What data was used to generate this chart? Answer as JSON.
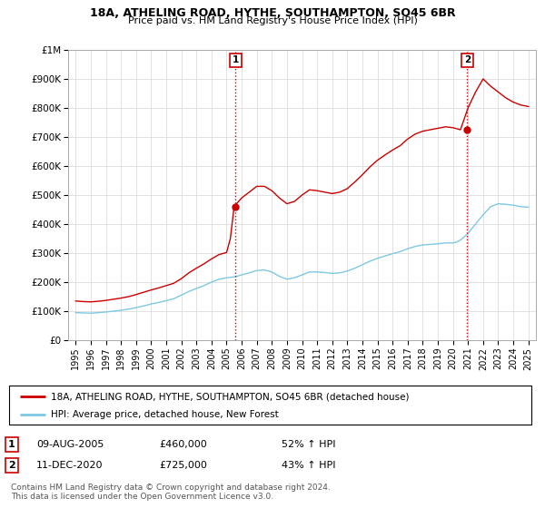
{
  "title": "18A, ATHELING ROAD, HYTHE, SOUTHAMPTON, SO45 6BR",
  "subtitle": "Price paid vs. HM Land Registry's House Price Index (HPI)",
  "property_label": "18A, ATHELING ROAD, HYTHE, SOUTHAMPTON, SO45 6BR (detached house)",
  "hpi_label": "HPI: Average price, detached house, New Forest",
  "property_color": "#cc0000",
  "hpi_color": "#7ec8e3",
  "transaction1_date": "09-AUG-2005",
  "transaction1_price": 460000,
  "transaction1_hpi_pct": "52% ↑ HPI",
  "transaction1_year": 2005.6,
  "transaction2_date": "11-DEC-2020",
  "transaction2_price": 725000,
  "transaction2_hpi_pct": "43% ↑ HPI",
  "transaction2_year": 2020.95,
  "footer": "Contains HM Land Registry data © Crown copyright and database right 2024.\nThis data is licensed under the Open Government Licence v3.0.",
  "ylim": [
    0,
    1000000
  ],
  "xlim_start": 1994.5,
  "xlim_end": 2025.5,
  "hpi_data": [
    [
      1995.0,
      95000
    ],
    [
      1995.25,
      94500
    ],
    [
      1995.5,
      94000
    ],
    [
      1995.75,
      93500
    ],
    [
      1996.0,
      93000
    ],
    [
      1996.25,
      94000
    ],
    [
      1996.5,
      95000
    ],
    [
      1996.75,
      96000
    ],
    [
      1997.0,
      97000
    ],
    [
      1997.25,
      98500
    ],
    [
      1997.5,
      100000
    ],
    [
      1997.75,
      101500
    ],
    [
      1998.0,
      103000
    ],
    [
      1998.25,
      105000
    ],
    [
      1998.5,
      107000
    ],
    [
      1998.75,
      109500
    ],
    [
      1999.0,
      112000
    ],
    [
      1999.25,
      115000
    ],
    [
      1999.5,
      118000
    ],
    [
      1999.75,
      121000
    ],
    [
      2000.0,
      125000
    ],
    [
      2000.25,
      127500
    ],
    [
      2000.5,
      130000
    ],
    [
      2000.75,
      133000
    ],
    [
      2001.0,
      136000
    ],
    [
      2001.25,
      139500
    ],
    [
      2001.5,
      143000
    ],
    [
      2001.75,
      149000
    ],
    [
      2002.0,
      155000
    ],
    [
      2002.25,
      161500
    ],
    [
      2002.5,
      168000
    ],
    [
      2002.75,
      173000
    ],
    [
      2003.0,
      178000
    ],
    [
      2003.25,
      183000
    ],
    [
      2003.5,
      188000
    ],
    [
      2003.75,
      194000
    ],
    [
      2004.0,
      200000
    ],
    [
      2004.25,
      205000
    ],
    [
      2004.5,
      210000
    ],
    [
      2004.75,
      212500
    ],
    [
      2005.0,
      215000
    ],
    [
      2005.25,
      216500
    ],
    [
      2005.5,
      218000
    ],
    [
      2005.75,
      221000
    ],
    [
      2006.0,
      225000
    ],
    [
      2006.25,
      228500
    ],
    [
      2006.5,
      232000
    ],
    [
      2006.75,
      236000
    ],
    [
      2007.0,
      240000
    ],
    [
      2007.25,
      241000
    ],
    [
      2007.5,
      242000
    ],
    [
      2007.75,
      238500
    ],
    [
      2008.0,
      235000
    ],
    [
      2008.25,
      227500
    ],
    [
      2008.5,
      220000
    ],
    [
      2008.75,
      215000
    ],
    [
      2009.0,
      210000
    ],
    [
      2009.25,
      212500
    ],
    [
      2009.5,
      215000
    ],
    [
      2009.75,
      220000
    ],
    [
      2010.0,
      225000
    ],
    [
      2010.25,
      230000
    ],
    [
      2010.5,
      235000
    ],
    [
      2010.75,
      235000
    ],
    [
      2011.0,
      235000
    ],
    [
      2011.25,
      234000
    ],
    [
      2011.5,
      233000
    ],
    [
      2011.75,
      231500
    ],
    [
      2012.0,
      230000
    ],
    [
      2012.25,
      231000
    ],
    [
      2012.5,
      232000
    ],
    [
      2012.75,
      235000
    ],
    [
      2013.0,
      238000
    ],
    [
      2013.25,
      243000
    ],
    [
      2013.5,
      248000
    ],
    [
      2013.75,
      254000
    ],
    [
      2014.0,
      260000
    ],
    [
      2014.25,
      266000
    ],
    [
      2014.5,
      272000
    ],
    [
      2014.75,
      277000
    ],
    [
      2015.0,
      282000
    ],
    [
      2015.25,
      286000
    ],
    [
      2015.5,
      290000
    ],
    [
      2015.75,
      294000
    ],
    [
      2016.0,
      298000
    ],
    [
      2016.25,
      301500
    ],
    [
      2016.5,
      305000
    ],
    [
      2016.75,
      310000
    ],
    [
      2017.0,
      315000
    ],
    [
      2017.25,
      319000
    ],
    [
      2017.5,
      323000
    ],
    [
      2017.75,
      325500
    ],
    [
      2018.0,
      328000
    ],
    [
      2018.25,
      329000
    ],
    [
      2018.5,
      330000
    ],
    [
      2018.75,
      331000
    ],
    [
      2019.0,
      332000
    ],
    [
      2019.25,
      333500
    ],
    [
      2019.5,
      335000
    ],
    [
      2019.75,
      335000
    ],
    [
      2020.0,
      335000
    ],
    [
      2020.25,
      338000
    ],
    [
      2020.5,
      345000
    ],
    [
      2020.75,
      356000
    ],
    [
      2021.0,
      368000
    ],
    [
      2021.25,
      384000
    ],
    [
      2021.5,
      400000
    ],
    [
      2021.75,
      416000
    ],
    [
      2022.0,
      432000
    ],
    [
      2022.25,
      446000
    ],
    [
      2022.5,
      460000
    ],
    [
      2022.75,
      465000
    ],
    [
      2023.0,
      470000
    ],
    [
      2023.25,
      469000
    ],
    [
      2023.5,
      468000
    ],
    [
      2023.75,
      466500
    ],
    [
      2024.0,
      465000
    ],
    [
      2024.25,
      462500
    ],
    [
      2024.5,
      460000
    ],
    [
      2024.75,
      459000
    ],
    [
      2025.0,
      458000
    ]
  ],
  "property_data": [
    [
      1995.0,
      135000
    ],
    [
      1995.25,
      134000
    ],
    [
      1995.5,
      133000
    ],
    [
      1995.75,
      132500
    ],
    [
      1996.0,
      132000
    ],
    [
      1996.25,
      133000
    ],
    [
      1996.5,
      134000
    ],
    [
      1996.75,
      135500
    ],
    [
      1997.0,
      137000
    ],
    [
      1997.25,
      139000
    ],
    [
      1997.5,
      141000
    ],
    [
      1997.75,
      143000
    ],
    [
      1998.0,
      145000
    ],
    [
      1998.25,
      147500
    ],
    [
      1998.5,
      150000
    ],
    [
      1998.75,
      153500
    ],
    [
      1999.0,
      157000
    ],
    [
      1999.25,
      161000
    ],
    [
      1999.5,
      165000
    ],
    [
      1999.75,
      169000
    ],
    [
      2000.0,
      173000
    ],
    [
      2000.25,
      176500
    ],
    [
      2000.5,
      180000
    ],
    [
      2000.75,
      184000
    ],
    [
      2001.0,
      188000
    ],
    [
      2001.25,
      192000
    ],
    [
      2001.5,
      196000
    ],
    [
      2001.75,
      204000
    ],
    [
      2002.0,
      212000
    ],
    [
      2002.25,
      222000
    ],
    [
      2002.5,
      232000
    ],
    [
      2002.75,
      240000
    ],
    [
      2003.0,
      248000
    ],
    [
      2003.25,
      255500
    ],
    [
      2003.5,
      263000
    ],
    [
      2003.75,
      271500
    ],
    [
      2004.0,
      280000
    ],
    [
      2004.25,
      287500
    ],
    [
      2004.5,
      295000
    ],
    [
      2004.75,
      298500
    ],
    [
      2005.0,
      302000
    ],
    [
      2005.25,
      350000
    ],
    [
      2005.5,
      460000
    ],
    [
      2005.75,
      475000
    ],
    [
      2006.0,
      490000
    ],
    [
      2006.25,
      500000
    ],
    [
      2006.5,
      510000
    ],
    [
      2006.75,
      520000
    ],
    [
      2007.0,
      530000
    ],
    [
      2007.25,
      530000
    ],
    [
      2007.5,
      530000
    ],
    [
      2007.75,
      522500
    ],
    [
      2008.0,
      515000
    ],
    [
      2008.25,
      502500
    ],
    [
      2008.5,
      490000
    ],
    [
      2008.75,
      480000
    ],
    [
      2009.0,
      470000
    ],
    [
      2009.25,
      474000
    ],
    [
      2009.5,
      478000
    ],
    [
      2009.75,
      489000
    ],
    [
      2010.0,
      500000
    ],
    [
      2010.25,
      509000
    ],
    [
      2010.5,
      518000
    ],
    [
      2010.75,
      516500
    ],
    [
      2011.0,
      515000
    ],
    [
      2011.25,
      512500
    ],
    [
      2011.5,
      510000
    ],
    [
      2011.75,
      507500
    ],
    [
      2012.0,
      505000
    ],
    [
      2012.25,
      507500
    ],
    [
      2012.5,
      510000
    ],
    [
      2012.75,
      516000
    ],
    [
      2013.0,
      522000
    ],
    [
      2013.25,
      533500
    ],
    [
      2013.5,
      545000
    ],
    [
      2013.75,
      557500
    ],
    [
      2014.0,
      570000
    ],
    [
      2014.25,
      583500
    ],
    [
      2014.5,
      597000
    ],
    [
      2014.75,
      608500
    ],
    [
      2015.0,
      620000
    ],
    [
      2015.25,
      629000
    ],
    [
      2015.5,
      638000
    ],
    [
      2015.75,
      646500
    ],
    [
      2016.0,
      655000
    ],
    [
      2016.25,
      662500
    ],
    [
      2016.5,
      670000
    ],
    [
      2016.75,
      681500
    ],
    [
      2017.0,
      693000
    ],
    [
      2017.25,
      701500
    ],
    [
      2017.5,
      710000
    ],
    [
      2017.75,
      715000
    ],
    [
      2018.0,
      720000
    ],
    [
      2018.25,
      722500
    ],
    [
      2018.5,
      725000
    ],
    [
      2018.75,
      727500
    ],
    [
      2019.0,
      730000
    ],
    [
      2019.25,
      732500
    ],
    [
      2019.5,
      735000
    ],
    [
      2019.75,
      733500
    ],
    [
      2020.0,
      732000
    ],
    [
      2020.25,
      728500
    ],
    [
      2020.5,
      725000
    ],
    [
      2020.75,
      762500
    ],
    [
      2021.0,
      800000
    ],
    [
      2021.25,
      827500
    ],
    [
      2021.5,
      855000
    ],
    [
      2021.75,
      877500
    ],
    [
      2022.0,
      900000
    ],
    [
      2022.25,
      887500
    ],
    [
      2022.5,
      875000
    ],
    [
      2022.75,
      865000
    ],
    [
      2023.0,
      855000
    ],
    [
      2023.25,
      845000
    ],
    [
      2023.5,
      835000
    ],
    [
      2023.75,
      827500
    ],
    [
      2024.0,
      820000
    ],
    [
      2024.25,
      815000
    ],
    [
      2024.5,
      810000
    ],
    [
      2024.75,
      807500
    ],
    [
      2025.0,
      805000
    ]
  ]
}
